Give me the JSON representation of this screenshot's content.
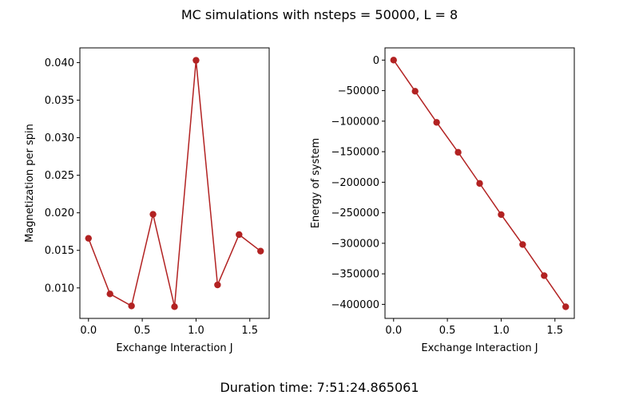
{
  "figure": {
    "title": "MC simulations with nsteps = 50000, L = 8",
    "footer": "Duration time: 7:51:24.865061"
  },
  "colors": {
    "series": "#b22222",
    "axes": "#000000",
    "background": "#ffffff"
  },
  "chart_data": [
    {
      "type": "line",
      "xlabel": "Exchange Interaction J",
      "ylabel": "Magnetization per spin",
      "x": [
        0.0,
        0.2,
        0.4,
        0.6,
        0.8,
        1.0,
        1.2,
        1.4,
        1.6
      ],
      "y": [
        0.0166,
        0.0092,
        0.0076,
        0.0198,
        0.0075,
        0.0403,
        0.0104,
        0.0171,
        0.0149
      ],
      "xlim": [
        -0.08,
        1.68
      ],
      "ylim": [
        0.00594,
        0.04196
      ],
      "xticks": [
        0.0,
        0.5,
        1.0,
        1.5
      ],
      "xtick_labels": [
        "0.0",
        "0.5",
        "1.0",
        "1.5"
      ],
      "yticks": [
        0.01,
        0.015,
        0.02,
        0.025,
        0.03,
        0.035,
        0.04
      ],
      "ytick_labels": [
        "0.010",
        "0.015",
        "0.020",
        "0.025",
        "0.030",
        "0.035",
        "0.040"
      ],
      "marker": "circle",
      "grid": false
    },
    {
      "type": "line",
      "xlabel": "Exchange Interaction J",
      "ylabel": "Energy of system",
      "x": [
        0.0,
        0.2,
        0.4,
        0.6,
        0.8,
        1.0,
        1.2,
        1.4,
        1.6
      ],
      "y": [
        0,
        -51000,
        -102000,
        -151000,
        -202000,
        -253000,
        -302000,
        -353000,
        -404000
      ],
      "xlim": [
        -0.08,
        1.68
      ],
      "ylim": [
        -423000,
        20000
      ],
      "xticks": [
        0.0,
        0.5,
        1.0,
        1.5
      ],
      "xtick_labels": [
        "0.0",
        "0.5",
        "1.0",
        "1.5"
      ],
      "yticks": [
        0,
        -50000,
        -100000,
        -150000,
        -200000,
        -250000,
        -300000,
        -350000,
        -400000
      ],
      "ytick_labels": [
        "0",
        "−50000",
        "−100000",
        "−150000",
        "−200000",
        "−250000",
        "−300000",
        "−350000",
        "−400000"
      ],
      "marker": "circle",
      "grid": false
    }
  ]
}
